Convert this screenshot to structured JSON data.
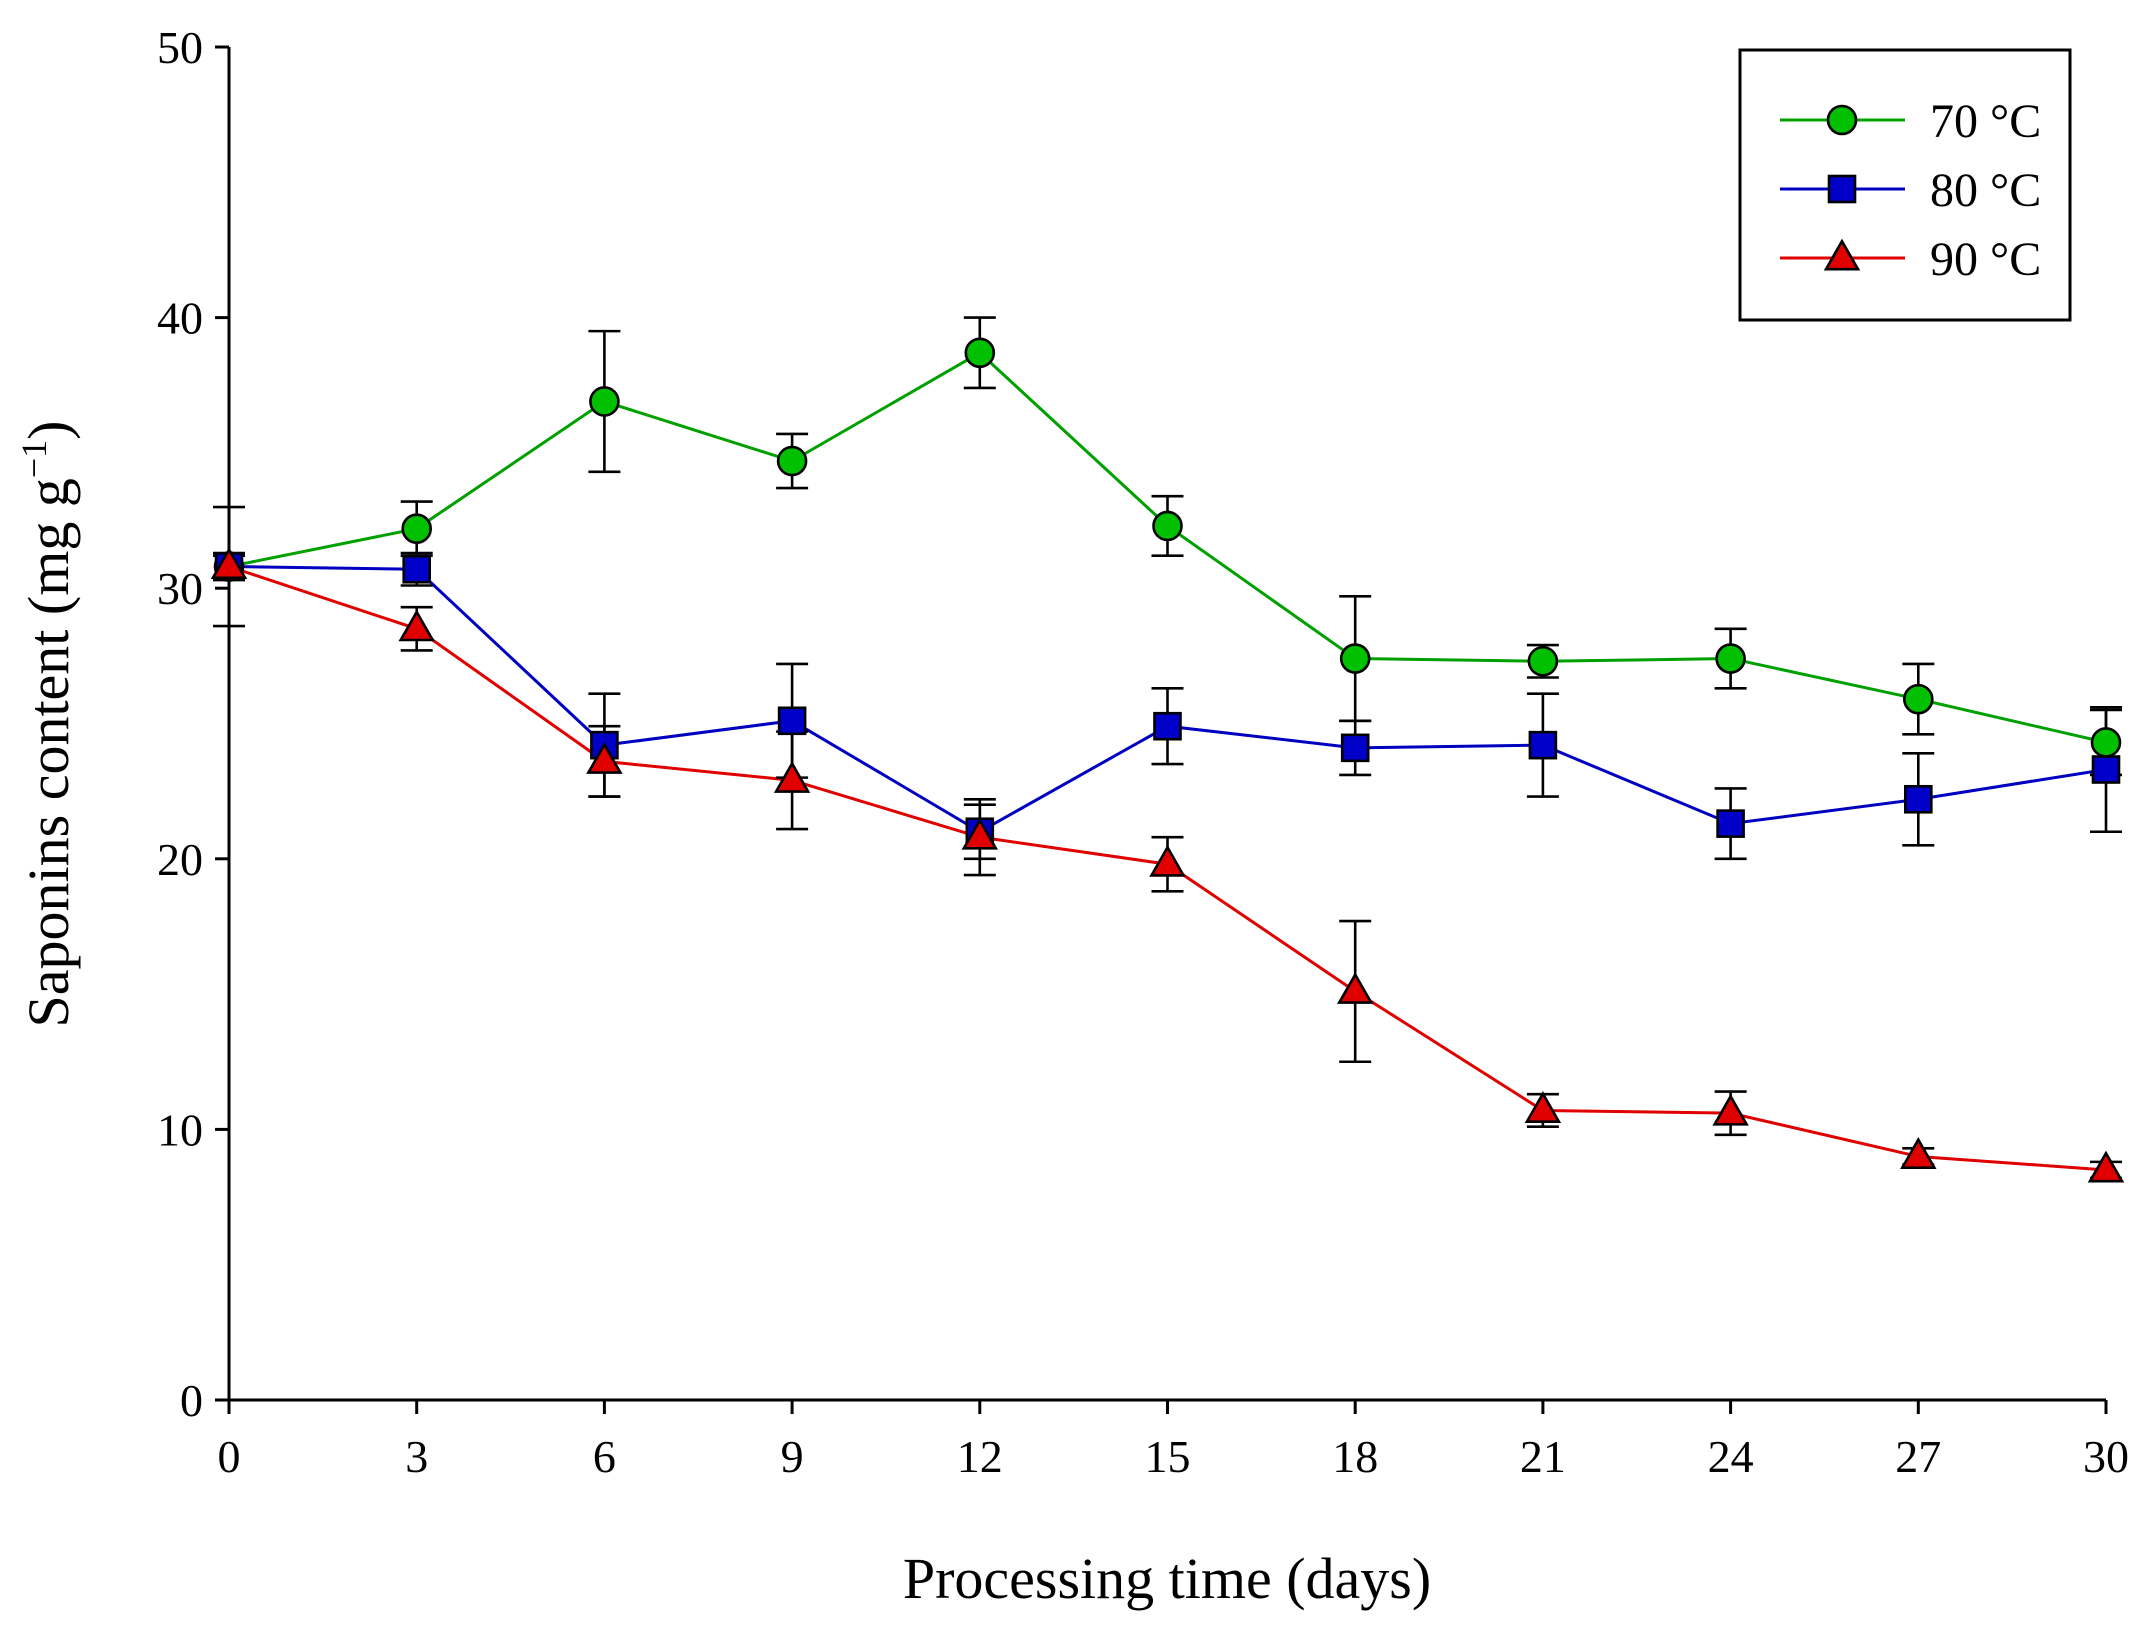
{
  "chart_data": {
    "type": "line",
    "xlabel": "Processing time (days)",
    "ylabel": "Saponins content (mg g",
    "ylabel_sup": "−1",
    "ylabel_close": ")",
    "x": [
      0,
      3,
      6,
      9,
      12,
      15,
      18,
      21,
      24,
      27,
      30
    ],
    "xlim": [
      0,
      30
    ],
    "ylim": [
      0,
      50
    ],
    "xticks": [
      "0",
      "3",
      "6",
      "9",
      "12",
      "15",
      "18",
      "21",
      "24",
      "27",
      "30"
    ],
    "yticks": [
      "0",
      "10",
      "20",
      "30",
      "40",
      "50"
    ],
    "grid": false,
    "legend_position": "top-right",
    "series": [
      {
        "name": "70 °C",
        "color": "#00a000",
        "marker_fill": "#00c000",
        "marker": "circle",
        "values": [
          30.8,
          32.2,
          36.9,
          34.7,
          38.7,
          32.3,
          27.4,
          27.3,
          27.4,
          25.9,
          24.3
        ],
        "errors": [
          2.2,
          1.0,
          2.6,
          1.0,
          1.3,
          1.1,
          2.3,
          0.6,
          1.1,
          1.3,
          1.2
        ]
      },
      {
        "name": "80 °C",
        "color": "#0000c0",
        "marker_fill": "#0000c8",
        "marker": "square",
        "values": [
          30.8,
          30.7,
          24.2,
          25.1,
          21.0,
          24.9,
          24.1,
          24.2,
          21.3,
          22.2,
          23.3
        ],
        "errors": [
          0.5,
          0.6,
          1.9,
          2.1,
          1.0,
          1.4,
          1.0,
          1.9,
          1.3,
          1.7,
          2.3
        ]
      },
      {
        "name": "90 °C",
        "color": "#e00000",
        "marker_fill": "#e00000",
        "marker": "triangle",
        "values": [
          30.8,
          28.5,
          23.6,
          22.9,
          20.8,
          19.8,
          15.1,
          10.7,
          10.6,
          9.0,
          8.5
        ],
        "errors": [
          0.4,
          0.8,
          1.3,
          1.8,
          1.4,
          1.0,
          2.6,
          0.6,
          0.8,
          0.3,
          0.3
        ]
      }
    ]
  }
}
